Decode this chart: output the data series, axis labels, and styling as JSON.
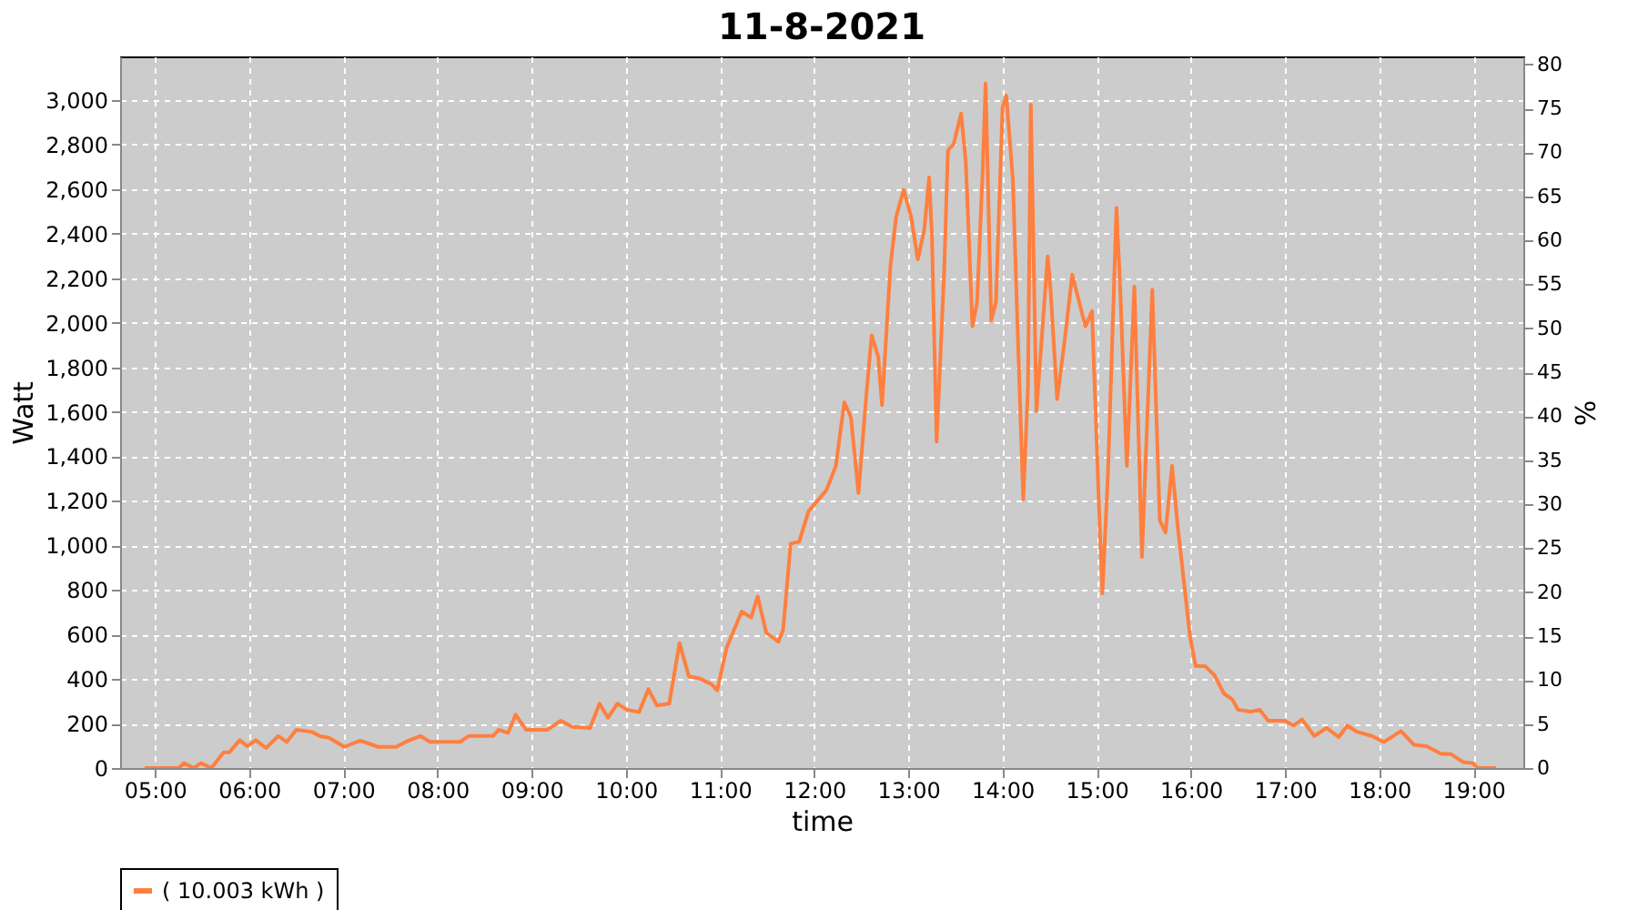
{
  "chart_data": {
    "type": "line",
    "title": "11-8-2021",
    "xlabel": "time",
    "ylabel": "Watt",
    "y2label": "%",
    "xlim": [
      4.63,
      19.53
    ],
    "xticks": [
      {
        "value": 5,
        "label": "05:00"
      },
      {
        "value": 6,
        "label": "06:00"
      },
      {
        "value": 7,
        "label": "07:00"
      },
      {
        "value": 8,
        "label": "08:00"
      },
      {
        "value": 9,
        "label": "09:00"
      },
      {
        "value": 10,
        "label": "10:00"
      },
      {
        "value": 11,
        "label": "11:00"
      },
      {
        "value": 12,
        "label": "12:00"
      },
      {
        "value": 13,
        "label": "13:00"
      },
      {
        "value": 14,
        "label": "14:00"
      },
      {
        "value": 15,
        "label": "15:00"
      },
      {
        "value": 16,
        "label": "16:00"
      },
      {
        "value": 17,
        "label": "17:00"
      },
      {
        "value": 18,
        "label": "18:00"
      },
      {
        "value": 19,
        "label": "19:00"
      }
    ],
    "ylim": [
      0,
      3196
    ],
    "yticks": [
      0,
      200,
      400,
      600,
      800,
      {
        "value": 1000,
        "label": "1,000"
      },
      {
        "value": 1200,
        "label": "1,200"
      },
      {
        "value": 1400,
        "label": "1,400"
      },
      {
        "value": 1600,
        "label": "1,600"
      },
      {
        "value": 1800,
        "label": "1,800"
      },
      {
        "value": 2000,
        "label": "2,000"
      },
      {
        "value": 2200,
        "label": "2,200"
      },
      {
        "value": 2400,
        "label": "2,400"
      },
      {
        "value": 2600,
        "label": "2,600"
      },
      {
        "value": 2800,
        "label": "2,800"
      },
      {
        "value": 3000,
        "label": "3,000"
      }
    ],
    "y2lim": [
      0,
      80.9
    ],
    "y2ticks": [
      0,
      5,
      10,
      15,
      20,
      25,
      30,
      35,
      40,
      45,
      50,
      55,
      60,
      65,
      70,
      75,
      80
    ],
    "grid": true,
    "legend": "bottom",
    "x": [
      4.89,
      5.25,
      5.31,
      5.41,
      5.49,
      5.6,
      5.73,
      5.79,
      5.9,
      5.98,
      6.07,
      6.18,
      6.31,
      6.4,
      6.5,
      6.66,
      6.76,
      6.85,
      7.01,
      7.18,
      7.37,
      7.56,
      7.69,
      7.82,
      7.92,
      8.24,
      8.33,
      8.59,
      8.65,
      8.75,
      8.83,
      8.94,
      9.17,
      9.31,
      9.43,
      9.62,
      9.72,
      9.81,
      9.91,
      10.01,
      10.14,
      10.24,
      10.33,
      10.46,
      10.57,
      10.67,
      10.78,
      10.91,
      10.97,
      11.07,
      11.23,
      11.33,
      11.4,
      11.49,
      11.62,
      11.67,
      11.75,
      11.84,
      11.94,
      12.13,
      12.23,
      12.32,
      12.39,
      12.47,
      12.55,
      12.61,
      12.68,
      12.72,
      12.81,
      12.87,
      12.95,
      13.03,
      13.1,
      13.17,
      13.22,
      13.25,
      13.3,
      13.38,
      13.42,
      13.48,
      13.56,
      13.61,
      13.68,
      13.73,
      13.79,
      13.82,
      13.88,
      13.93,
      14.0,
      14.04,
      14.11,
      14.18,
      14.22,
      14.27,
      14.3,
      14.36,
      14.48,
      14.51,
      14.58,
      14.67,
      14.74,
      14.83,
      14.88,
      14.95,
      15.02,
      15.06,
      15.12,
      15.21,
      15.25,
      15.32,
      15.4,
      15.48,
      15.54,
      15.59,
      15.67,
      15.73,
      15.8,
      15.86,
      15.99,
      16.05,
      16.15,
      16.25,
      16.35,
      16.44,
      16.5,
      16.63,
      16.73,
      16.82,
      16.99,
      17.09,
      17.18,
      17.31,
      17.44,
      17.57,
      17.66,
      17.76,
      17.92,
      18.05,
      18.23,
      18.37,
      18.5,
      18.66,
      18.76,
      18.89,
      18.99,
      19.05,
      19.24
    ],
    "series": [
      {
        "name": "( 10.003 kWh )",
        "color": "#ff7f3f",
        "values": [
          0,
          0,
          22,
          0,
          22,
          0,
          71,
          71,
          125,
          98,
          125,
          90,
          144,
          117,
          172,
          163,
          142,
          136,
          95,
          123,
          95,
          95,
          123,
          144,
          117,
          117,
          144,
          144,
          172,
          158,
          240,
          172,
          172,
          213,
          185,
          180,
          289,
          226,
          289,
          262,
          251,
          354,
          281,
          289,
          561,
          411,
          403,
          376,
          349,
          540,
          703,
          676,
          771,
          608,
          567,
          621,
          1008,
          1016,
          1153,
          1248,
          1357,
          1643,
          1575,
          1235,
          1657,
          1943,
          1848,
          1630,
          2257,
          2475,
          2597,
          2475,
          2284,
          2420,
          2652,
          2393,
          1466,
          2230,
          2774,
          2802,
          2939,
          2720,
          1984,
          2093,
          2693,
          3074,
          2011,
          2093,
          2966,
          3020,
          2639,
          1711,
          1207,
          1711,
          2979,
          1603,
          2298,
          2148,
          1657,
          1957,
          2216,
          2066,
          1984,
          2052,
          1221,
          785,
          1330,
          2516,
          2148,
          1357,
          2162,
          948,
          1603,
          2148,
          1112,
          1058,
          1357,
          1085,
          594,
          458,
          458,
          417,
          335,
          308,
          262,
          253,
          262,
          213,
          213,
          191,
          218,
          144,
          180,
          139,
          191,
          163,
          144,
          117,
          166,
          104,
          98,
          63,
          63,
          27,
          22,
          0,
          0
        ]
      }
    ]
  }
}
